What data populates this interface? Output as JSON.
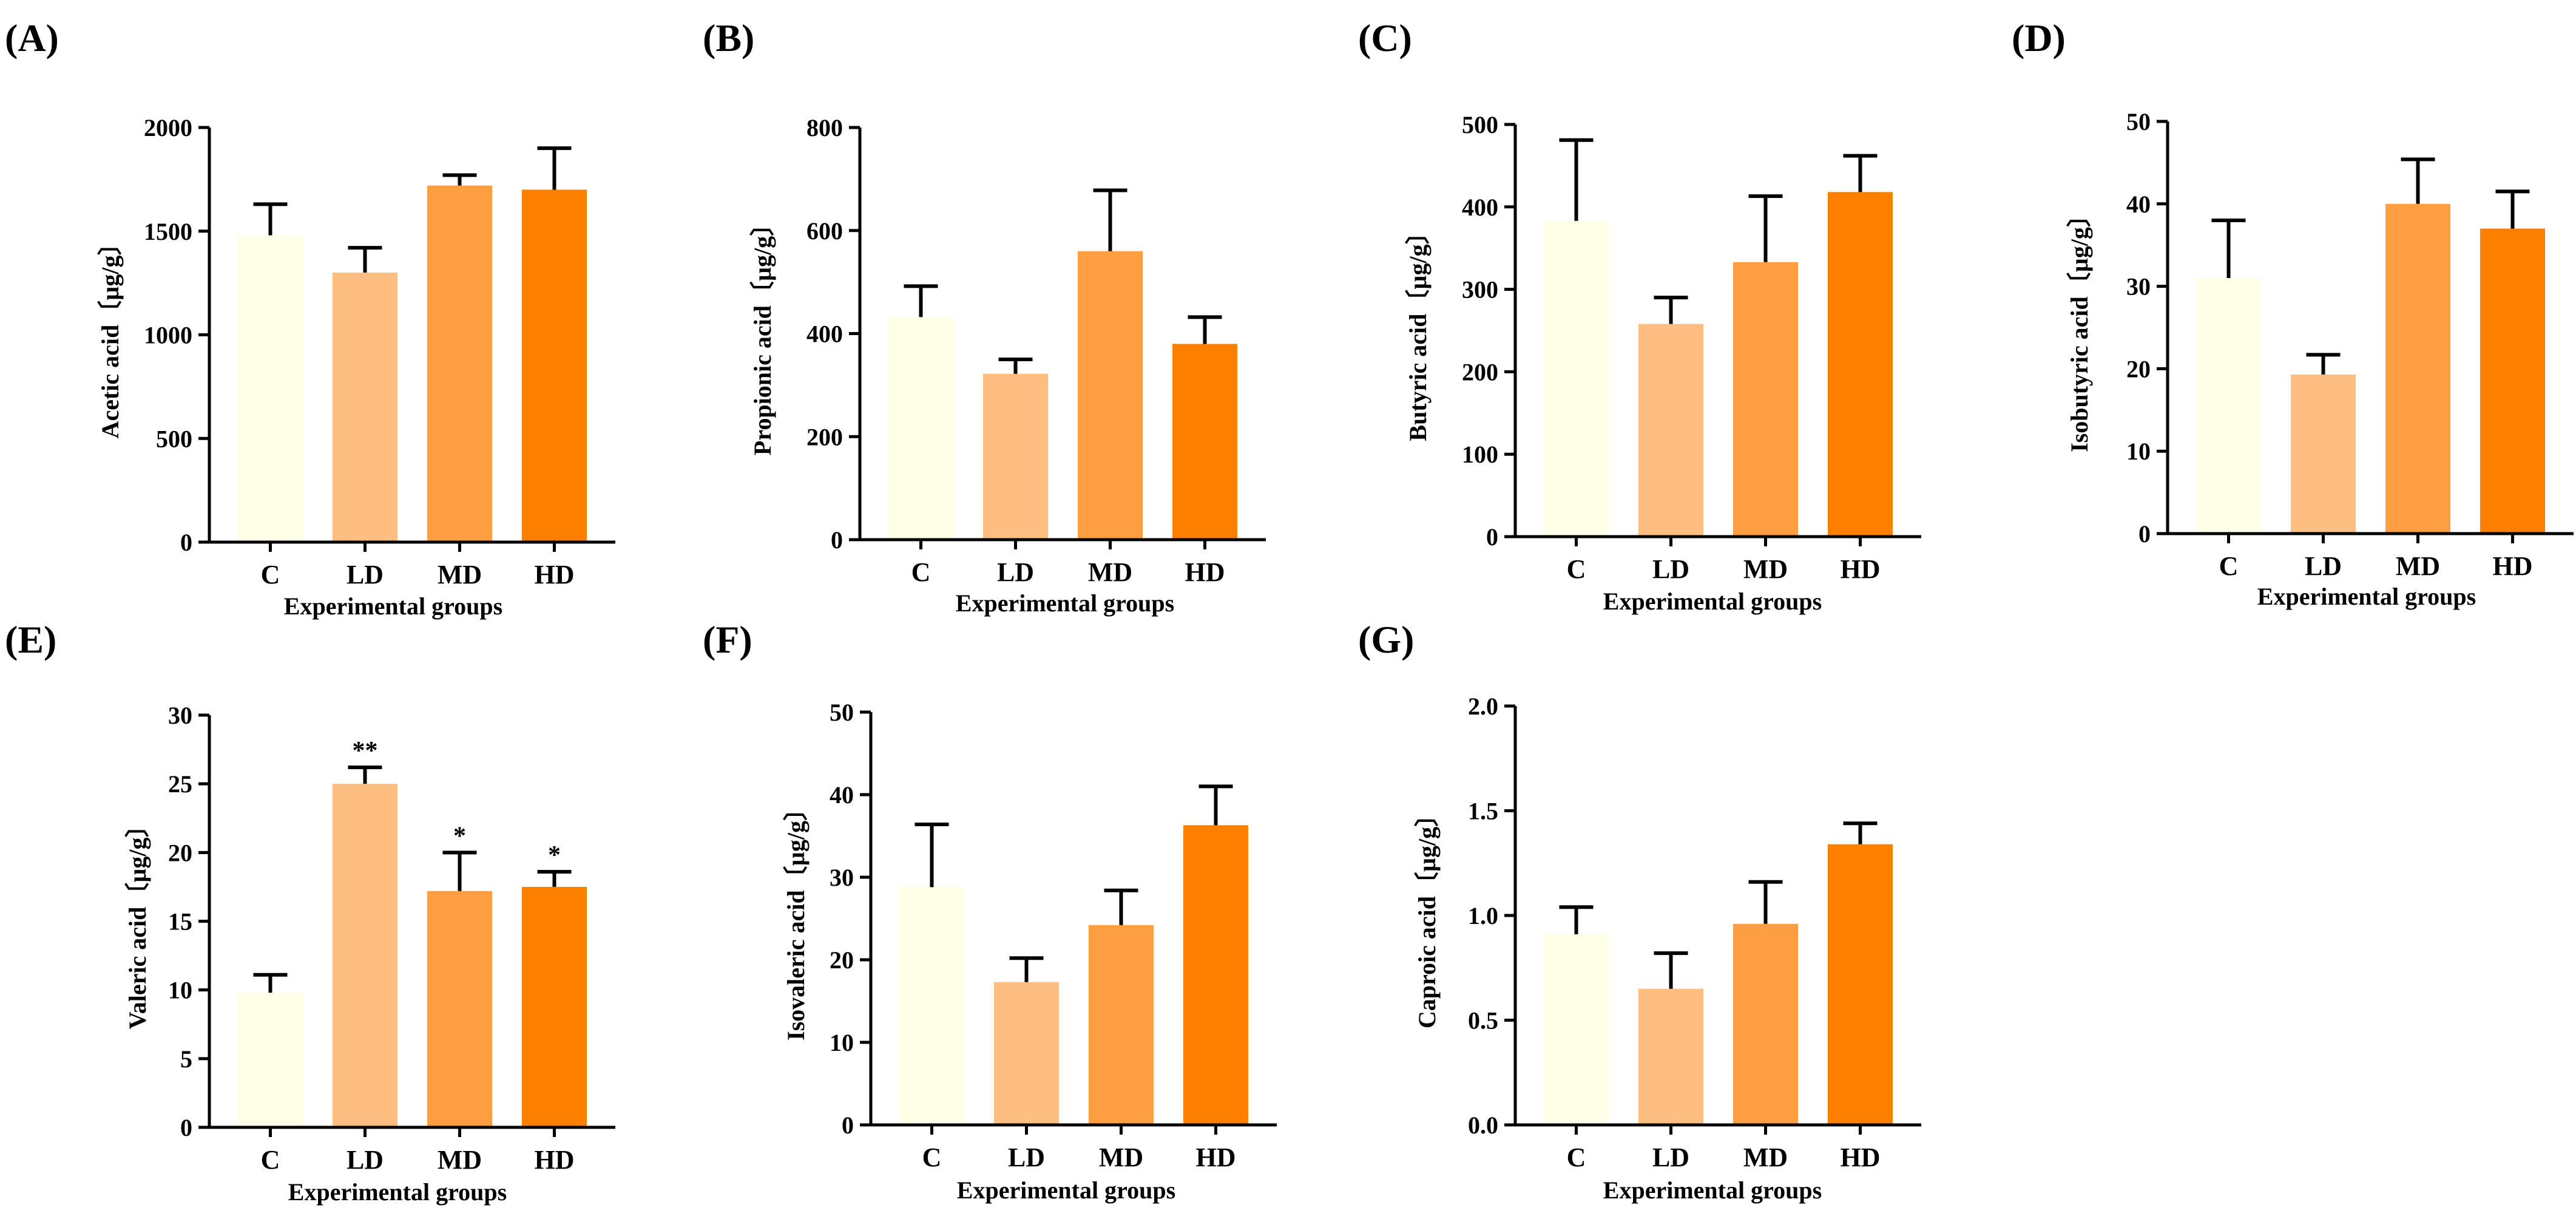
{
  "colors": {
    "C": "#FFFEE6",
    "LD": "#FEBE82",
    "MD": "#FE9E42",
    "HD": "#FD7F00"
  },
  "chart_data": [
    {
      "panel": "(A)",
      "type": "bar",
      "categories": [
        "C",
        "LD",
        "MD",
        "HD"
      ],
      "values": [
        1480,
        1300,
        1720,
        1700
      ],
      "errors": [
        150,
        120,
        50,
        200
      ],
      "significance": [
        "",
        "",
        "",
        ""
      ],
      "ylabel": "Acetic acid〔µg/g〕",
      "xlabel": "Experimental groups",
      "ylim": [
        0,
        2000
      ],
      "yticks": [
        0,
        500,
        1000,
        1500,
        2000
      ],
      "ytick_labels": [
        "0",
        "500",
        "1000",
        "1500",
        "2000"
      ]
    },
    {
      "panel": "(B)",
      "type": "bar",
      "categories": [
        "C",
        "LD",
        "MD",
        "HD"
      ],
      "values": [
        432,
        322,
        560,
        380
      ],
      "errors": [
        60,
        28,
        118,
        52
      ],
      "significance": [
        "",
        "",
        "",
        ""
      ],
      "ylabel": "Propionic acid〔µg/g〕",
      "xlabel": "Experimental groups",
      "ylim": [
        0,
        800
      ],
      "yticks": [
        0,
        200,
        400,
        600,
        800
      ],
      "ytick_labels": [
        "0",
        "200",
        "400",
        "600",
        "800"
      ]
    },
    {
      "panel": "(C)",
      "type": "bar",
      "categories": [
        "C",
        "LD",
        "MD",
        "HD"
      ],
      "values": [
        383,
        258,
        333,
        418
      ],
      "errors": [
        98,
        32,
        80,
        44
      ],
      "significance": [
        "",
        "",
        "",
        ""
      ],
      "ylabel": "Butyric acid〔µg/g〕",
      "xlabel": "Experimental groups",
      "ylim": [
        0,
        500
      ],
      "yticks": [
        0,
        100,
        200,
        300,
        400,
        500
      ],
      "ytick_labels": [
        "0",
        "100",
        "200",
        "300",
        "400",
        "500"
      ]
    },
    {
      "panel": "(D)",
      "type": "bar",
      "categories": [
        "C",
        "LD",
        "MD",
        "HD"
      ],
      "values": [
        31,
        19.3,
        40,
        37
      ],
      "errors": [
        7,
        2.4,
        5.4,
        4.5
      ],
      "significance": [
        "",
        "",
        "",
        ""
      ],
      "ylabel": "Isobutyric acid〔µg/g〕",
      "xlabel": "Experimental groups",
      "ylim": [
        0,
        50
      ],
      "yticks": [
        0,
        10,
        20,
        30,
        40,
        50
      ],
      "ytick_labels": [
        "0",
        "10",
        "20",
        "30",
        "40",
        "50"
      ]
    },
    {
      "panel": "(E)",
      "type": "bar",
      "categories": [
        "C",
        "LD",
        "MD",
        "HD"
      ],
      "values": [
        9.8,
        25,
        17.2,
        17.5
      ],
      "errors": [
        1.3,
        1.2,
        2.8,
        1.1
      ],
      "significance": [
        "",
        "**",
        "*",
        "*"
      ],
      "ylabel": "Valeric acid〔µg/g〕",
      "xlabel": "Experimental groups",
      "ylim": [
        0,
        30
      ],
      "yticks": [
        0,
        5,
        10,
        15,
        20,
        25,
        30
      ],
      "ytick_labels": [
        "0",
        "5",
        "10",
        "15",
        "20",
        "25",
        "30"
      ]
    },
    {
      "panel": "(F)",
      "type": "bar",
      "categories": [
        "C",
        "LD",
        "MD",
        "HD"
      ],
      "values": [
        28.8,
        17.3,
        24.2,
        36.3
      ],
      "errors": [
        7.6,
        2.9,
        4.2,
        4.7
      ],
      "significance": [
        "",
        "",
        "",
        ""
      ],
      "ylabel": "Isovaleric acid〔µg/g〕",
      "xlabel": "Experimental groups",
      "ylim": [
        0,
        50
      ],
      "yticks": [
        0,
        10,
        20,
        30,
        40,
        50
      ],
      "ytick_labels": [
        "0",
        "10",
        "20",
        "30",
        "40",
        "50"
      ]
    },
    {
      "panel": "(G)",
      "type": "bar",
      "categories": [
        "C",
        "LD",
        "MD",
        "HD"
      ],
      "values": [
        0.91,
        0.65,
        0.96,
        1.34
      ],
      "errors": [
        0.13,
        0.17,
        0.2,
        0.1
      ],
      "significance": [
        "",
        "",
        "",
        ""
      ],
      "ylabel": "Caproic acid〔µg/g〕",
      "xlabel": "Experimental groups",
      "ylim": [
        0,
        2.0
      ],
      "yticks": [
        0,
        0.5,
        1.0,
        1.5,
        2.0
      ],
      "ytick_labels": [
        "0.0",
        "0.5",
        "1.0",
        "1.5",
        "2.0"
      ]
    }
  ]
}
